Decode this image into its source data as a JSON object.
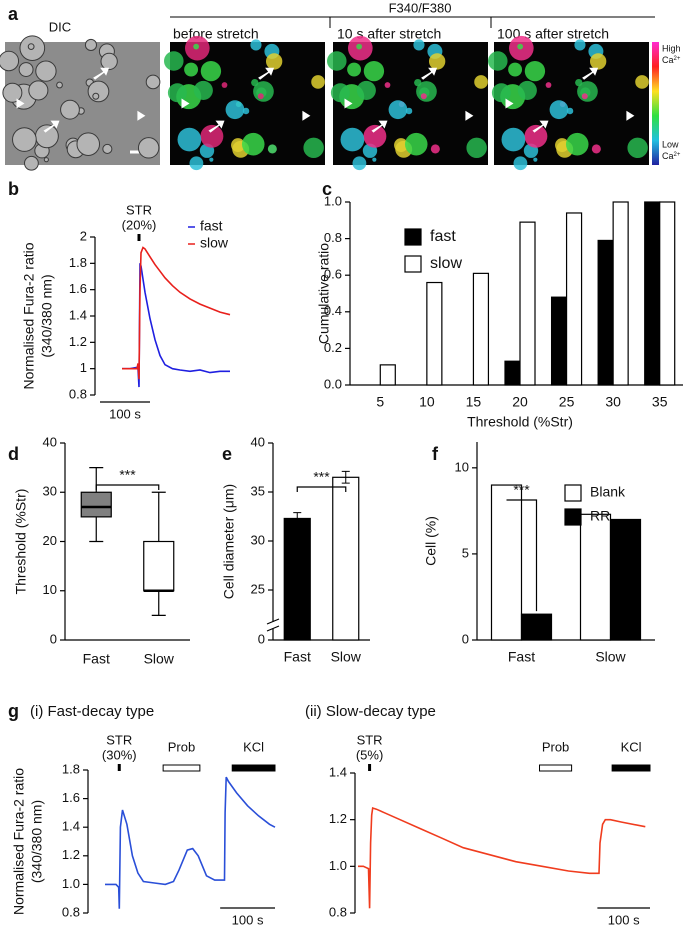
{
  "panel_labels": [
    "a",
    "b",
    "c",
    "d",
    "e",
    "f",
    "g"
  ],
  "panel_a": {
    "dic_title": "DIC",
    "group_title": "F340/F380",
    "image_titles": [
      "before stretch",
      "10 s after stretch",
      "100 s after stretch"
    ],
    "colorbar": {
      "high": "High",
      "low": "Low",
      "ion": "Ca",
      "charge": "2+"
    }
  },
  "chart_data": [
    {
      "type": "line",
      "y_label": [
        "Normalised Fura-2 ratio",
        "(340/380 nm)"
      ],
      "x": [
        44,
        60,
        74,
        76,
        78,
        80,
        82,
        86,
        90,
        100,
        110,
        120,
        130,
        145,
        160,
        180,
        200,
        220,
        240,
        260
      ],
      "xlim": [
        0,
        270
      ],
      "ylim": [
        0.8,
        2
      ],
      "yticks": [
        0.8,
        1,
        1.2,
        1.4,
        1.6,
        1.8,
        2
      ],
      "series": [
        {
          "name": "fast",
          "color": "#1f1fe0",
          "values": [
            1.0,
            1.0,
            1.01,
            1.0,
            0.86,
            1.8,
            1.78,
            1.68,
            1.58,
            1.38,
            1.22,
            1.1,
            1.03,
            1.0,
            0.99,
            0.98,
            0.99,
            0.97,
            0.98,
            0.98
          ]
        },
        {
          "name": "slow",
          "color": "#e8201c",
          "values": [
            1.0,
            1.0,
            1.0,
            1.04,
            0.92,
            1.6,
            1.88,
            1.92,
            1.91,
            1.85,
            1.79,
            1.74,
            1.69,
            1.63,
            1.58,
            1.53,
            1.49,
            1.46,
            1.43,
            1.41
          ]
        }
      ],
      "stimuli": [
        {
          "label": "STR",
          "detail": "(20%)",
          "time": 78
        }
      ],
      "scale_bar": {
        "value": 100,
        "label": "100 s"
      }
    },
    {
      "type": "bar",
      "y_label": "Cumulative ratio",
      "x_label": "Threshold (%Str)",
      "categories": [
        "5",
        "10",
        "15",
        "20",
        "25",
        "30",
        "35"
      ],
      "ylim": [
        0,
        1
      ],
      "yticks": [
        {
          "value": 0,
          "label": "0.0"
        },
        0.2,
        0.4,
        0.6,
        0.8,
        {
          "value": 1,
          "label": "1.0"
        }
      ],
      "series": [
        {
          "name": "fast",
          "color": "#000000",
          "values": [
            0,
            0,
            0,
            0.13,
            0.48,
            0.79,
            1.0
          ]
        },
        {
          "name": "slow",
          "color": "#ffffff",
          "values": [
            0.11,
            0.56,
            0.61,
            0.89,
            0.94,
            1.0,
            1.0
          ]
        }
      ]
    },
    {
      "type": "box",
      "y_label": "Threshold (%Str)",
      "categories": [
        "Fast",
        "Slow"
      ],
      "min": [
        20,
        5
      ],
      "q1": [
        25,
        10
      ],
      "median": [
        27,
        10
      ],
      "q3": [
        30,
        20
      ],
      "max": [
        35,
        30
      ],
      "colors": [
        "#808080",
        "#ffffff"
      ],
      "ylim": [
        0,
        40
      ],
      "yticks": [
        0,
        10,
        20,
        30,
        40
      ],
      "significance": "***"
    },
    {
      "type": "bar",
      "y_label": "Cell diameter (μm)",
      "categories": [
        "Fast",
        "Slow"
      ],
      "values": [
        32.3,
        36.5
      ],
      "errors": [
        0.6,
        0.6
      ],
      "colors": [
        "#000000",
        "#ffffff"
      ],
      "ylim": [
        0,
        40
      ],
      "axis_break": [
        0,
        25
      ],
      "yticks": [
        0,
        25,
        30,
        35,
        40
      ],
      "significance": "***"
    },
    {
      "type": "bar",
      "y_label": "Cell (%)",
      "categories": [
        "Fast",
        "Slow"
      ],
      "series": [
        {
          "name": "Blank",
          "color": "#ffffff",
          "values": [
            9.0,
            7.3
          ]
        },
        {
          "name": "RR",
          "color": "#000000",
          "values": [
            1.5,
            7.0
          ]
        }
      ],
      "ylim": [
        0,
        11.5
      ],
      "yticks": [
        0,
        5,
        10
      ],
      "significance": "***"
    },
    {
      "type": "line",
      "title": "(i) Fast-decay type",
      "y_label": [
        "Normalised Fura-2 ratio",
        "(340/380 nm)"
      ],
      "x": [
        0,
        10,
        20,
        25,
        26,
        28,
        32,
        40,
        50,
        60,
        70,
        90,
        110,
        125,
        135,
        150,
        160,
        170,
        185,
        200,
        218,
        219,
        221,
        225,
        240,
        260,
        280,
        300,
        310
      ],
      "xlim": [
        0,
        310
      ],
      "ylim": [
        0.8,
        1.8
      ],
      "yticks": [
        0.8,
        {
          "value": 1,
          "label": "1.0"
        },
        1.2,
        1.4,
        1.6,
        1.8
      ],
      "series": [
        {
          "color": "#2a4fd8",
          "values": [
            1.0,
            1.0,
            1.0,
            0.98,
            0.83,
            1.4,
            1.52,
            1.42,
            1.2,
            1.08,
            1.02,
            1.01,
            1.0,
            1.02,
            1.1,
            1.24,
            1.25,
            1.2,
            1.06,
            1.03,
            1.03,
            1.5,
            1.75,
            1.72,
            1.64,
            1.55,
            1.48,
            1.42,
            1.4
          ]
        }
      ],
      "stimuli": [
        {
          "label": "STR",
          "detail": "(30%)",
          "time": 26
        }
      ],
      "periods": [
        {
          "label": "Prob",
          "start": 106,
          "end": 173,
          "color": "#ffffff"
        },
        {
          "label": "KCl",
          "start": 232,
          "end": 310,
          "color": "#000000"
        }
      ],
      "scale_bar": {
        "value": 100,
        "label": "100 s"
      }
    },
    {
      "type": "line",
      "title": "(ii) Slow-decay type",
      "x": [
        0,
        10,
        20,
        22,
        24,
        26,
        28,
        35,
        50,
        80,
        120,
        160,
        200,
        250,
        300,
        350,
        400,
        440,
        458,
        460,
        465,
        470,
        480,
        500,
        546
      ],
      "xlim": [
        0,
        555
      ],
      "ylim": [
        0.8,
        1.4
      ],
      "yticks": [
        0.8,
        {
          "value": 1,
          "label": "1.0"
        },
        1.2,
        1.4
      ],
      "series": [
        {
          "color": "#f03c1e",
          "values": [
            1.0,
            1.0,
            0.99,
            0.82,
            1.1,
            1.22,
            1.25,
            1.245,
            1.23,
            1.2,
            1.16,
            1.12,
            1.08,
            1.05,
            1.02,
            1.0,
            0.98,
            0.97,
            0.97,
            1.1,
            1.18,
            1.2,
            1.2,
            1.19,
            1.17
          ]
        }
      ],
      "stimuli": [
        {
          "label": "STR",
          "detail": "(5%)",
          "time": 22
        }
      ],
      "periods": [
        {
          "label": "Prob",
          "start": 345,
          "end": 406,
          "color": "#ffffff"
        },
        {
          "label": "KCl",
          "start": 483,
          "end": 555,
          "color": "#000000"
        }
      ],
      "scale_bar": {
        "value": 100,
        "label": "100 s"
      }
    }
  ]
}
